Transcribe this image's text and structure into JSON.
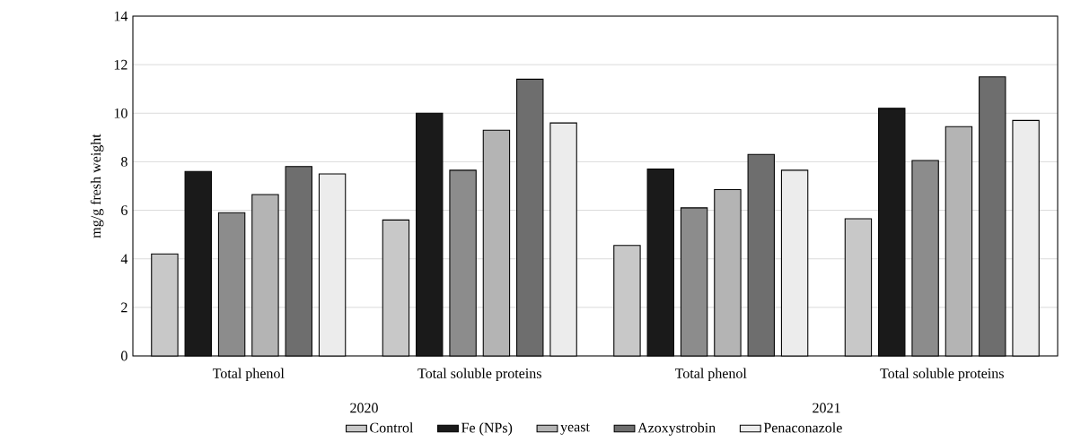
{
  "chart_data": {
    "type": "bar",
    "ylabel": "mg/g  fresh weight",
    "categories": [
      "Total phenol",
      "Total soluble proteins",
      "Total phenol",
      "Total soluble proteins"
    ],
    "annotations": [
      "2020",
      "2021"
    ],
    "series": [
      {
        "name": "Control",
        "color": "#c8c8c8",
        "values": [
          4.2,
          5.6,
          4.55,
          5.65
        ]
      },
      {
        "name": "Fe (NPs)",
        "color": "#1a1a1a",
        "values": [
          7.6,
          10.0,
          7.7,
          10.2
        ]
      },
      {
        "color": "#8c8c8c",
        "values": [
          5.9,
          7.65,
          6.1,
          8.05
        ]
      },
      {
        "name": "yeast",
        "color": "#b4b4b4",
        "values": [
          6.65,
          9.3,
          6.85,
          9.45
        ]
      },
      {
        "name": "Azoxystrobin",
        "color": "#6e6e6e",
        "values": [
          7.8,
          11.4,
          8.3,
          11.5
        ]
      },
      {
        "name": "Penaconazole",
        "color": "#ececec",
        "values": [
          7.5,
          9.6,
          7.65,
          9.7
        ]
      }
    ],
    "ylim": [
      0,
      14
    ],
    "yticks": [
      0,
      2,
      4,
      6,
      8,
      10,
      12,
      14
    ],
    "grid": "y",
    "legend": "bottom"
  }
}
